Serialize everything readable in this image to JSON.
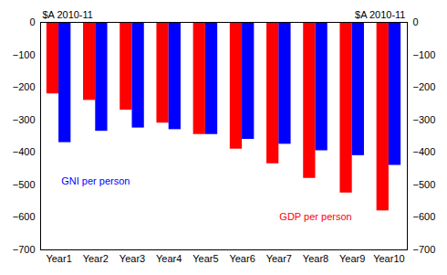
{
  "chart_data": {
    "type": "bar",
    "ylabel": "$A 2010-11",
    "y2label": "$A 2010-11",
    "categories": [
      "Year1",
      "Year2",
      "Year3",
      "Year4",
      "Year5",
      "Year6",
      "Year7",
      "Year8",
      "Year9",
      "Year10"
    ],
    "series": [
      {
        "name": "GDP per person",
        "color": "#ff0000",
        "values": [
          -220,
          -240,
          -270,
          -310,
          -345,
          -390,
          -435,
          -480,
          -525,
          -580
        ],
        "label": {
          "x": "Year8",
          "y": -600
        }
      },
      {
        "name": "GNI per person",
        "color": "#0000ff",
        "values": [
          -370,
          -335,
          -325,
          -330,
          -345,
          -360,
          -375,
          -395,
          -410,
          -440
        ],
        "label": {
          "x": "Year2",
          "y": -490
        }
      }
    ],
    "ylim": [
      -700,
      0
    ],
    "yticks": [
      -700,
      -600,
      -500,
      -400,
      -300,
      -200,
      -100,
      0
    ],
    "y2lim": [
      -700,
      0
    ],
    "y2ticks": [
      -700,
      -600,
      -500,
      -400,
      -300,
      -200,
      -100,
      0
    ],
    "grid": false
  }
}
